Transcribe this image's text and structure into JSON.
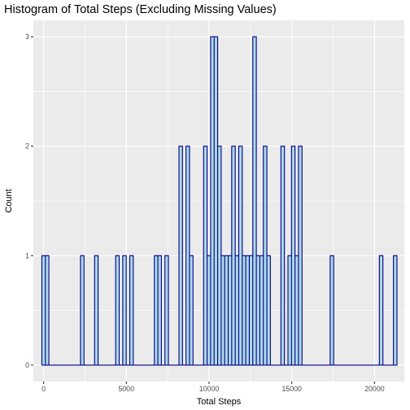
{
  "chart_data": {
    "type": "bar",
    "title": "Histogram of Total Steps (Excluding Missing Values)",
    "xlabel": "Total Steps",
    "ylabel": "Count",
    "xlim": [
      -620,
      21800
    ],
    "ylim": [
      -0.15,
      3.15
    ],
    "x_ticks": [
      0,
      5000,
      10000,
      15000,
      20000
    ],
    "x_tick_labels": [
      "0",
      "5000",
      "10000",
      "15000",
      "20000"
    ],
    "y_ticks": [
      0,
      1,
      2,
      3
    ],
    "y_tick_labels": [
      "0",
      "1",
      "2",
      "3"
    ],
    "grid": true,
    "legend": "none",
    "colors": {
      "panel_background": "#ebebeb",
      "grid_major": "#ffffff",
      "bar_fill": "#add8e6",
      "bar_outline": "#00008b",
      "tick_label": "#4d4d4d"
    },
    "bin_width": 212.5,
    "bin_start": -106.25,
    "bins": [
      {
        "x": 0,
        "count": 1
      },
      {
        "x": 212.5,
        "count": 1
      },
      {
        "x": 2337.5,
        "count": 1
      },
      {
        "x": 3187.5,
        "count": 1
      },
      {
        "x": 4462.5,
        "count": 1
      },
      {
        "x": 4887.5,
        "count": 1
      },
      {
        "x": 5312.5,
        "count": 1
      },
      {
        "x": 6800,
        "count": 1
      },
      {
        "x": 7012.5,
        "count": 1
      },
      {
        "x": 7437.5,
        "count": 1
      },
      {
        "x": 8287.5,
        "count": 2
      },
      {
        "x": 8712.5,
        "count": 2
      },
      {
        "x": 8925,
        "count": 1
      },
      {
        "x": 9775,
        "count": 2
      },
      {
        "x": 9987.5,
        "count": 1
      },
      {
        "x": 10200,
        "count": 3
      },
      {
        "x": 10412.5,
        "count": 3
      },
      {
        "x": 10625,
        "count": 2
      },
      {
        "x": 10837.5,
        "count": 1
      },
      {
        "x": 11050,
        "count": 1
      },
      {
        "x": 11262.5,
        "count": 1
      },
      {
        "x": 11475,
        "count": 2
      },
      {
        "x": 11687.5,
        "count": 1
      },
      {
        "x": 11900,
        "count": 2
      },
      {
        "x": 12112.5,
        "count": 1
      },
      {
        "x": 12325,
        "count": 1
      },
      {
        "x": 12537.5,
        "count": 1
      },
      {
        "x": 12750,
        "count": 3
      },
      {
        "x": 12962.5,
        "count": 1
      },
      {
        "x": 13175,
        "count": 1
      },
      {
        "x": 13387.5,
        "count": 2
      },
      {
        "x": 13600,
        "count": 1
      },
      {
        "x": 14450,
        "count": 2
      },
      {
        "x": 14875,
        "count": 1
      },
      {
        "x": 15087.5,
        "count": 2
      },
      {
        "x": 15300,
        "count": 1
      },
      {
        "x": 15512.5,
        "count": 2
      },
      {
        "x": 17425,
        "count": 1
      },
      {
        "x": 20400,
        "count": 1
      },
      {
        "x": 21250,
        "count": 1
      }
    ]
  }
}
